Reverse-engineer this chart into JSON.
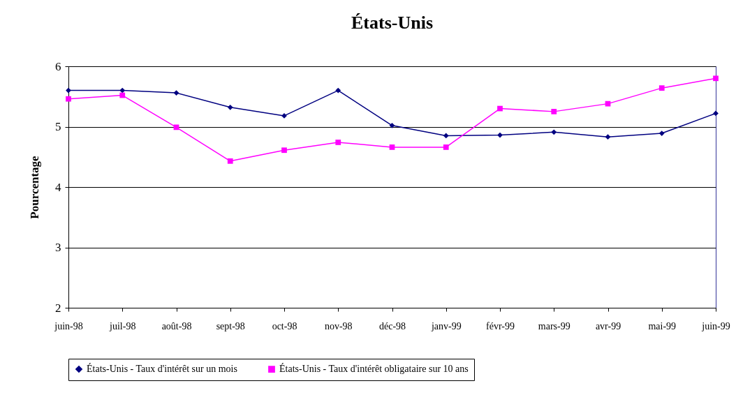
{
  "chart_data": {
    "type": "line",
    "title": "États-Unis",
    "ylabel": "Pourcentage",
    "categories": [
      "juin-98",
      "juil-98",
      "août-98",
      "sept-98",
      "oct-98",
      "nov-98",
      "déc-98",
      "janv-99",
      "févr-99",
      "mars-99",
      "avr-99",
      "mai-99",
      "juin-99"
    ],
    "series": [
      {
        "name": "États-Unis - Taux d'intérêt sur un mois",
        "color": "#000080",
        "marker": "diamond",
        "values": [
          5.6,
          5.6,
          5.56,
          5.32,
          5.18,
          5.6,
          5.02,
          4.85,
          4.86,
          4.91,
          4.83,
          4.89,
          5.22
        ]
      },
      {
        "name": "États-Unis - Taux d'intérêt obligataire sur 10 ans",
        "color": "#ff00ff",
        "marker": "square",
        "values": [
          5.46,
          5.52,
          4.99,
          4.43,
          4.61,
          4.74,
          4.66,
          4.66,
          5.3,
          5.25,
          5.38,
          5.64,
          5.8
        ]
      }
    ],
    "ylim": [
      2,
      6
    ],
    "yticks": [
      2,
      3,
      4,
      5,
      6
    ],
    "grid": "y",
    "legend": "bottom",
    "line_style": "solid"
  }
}
